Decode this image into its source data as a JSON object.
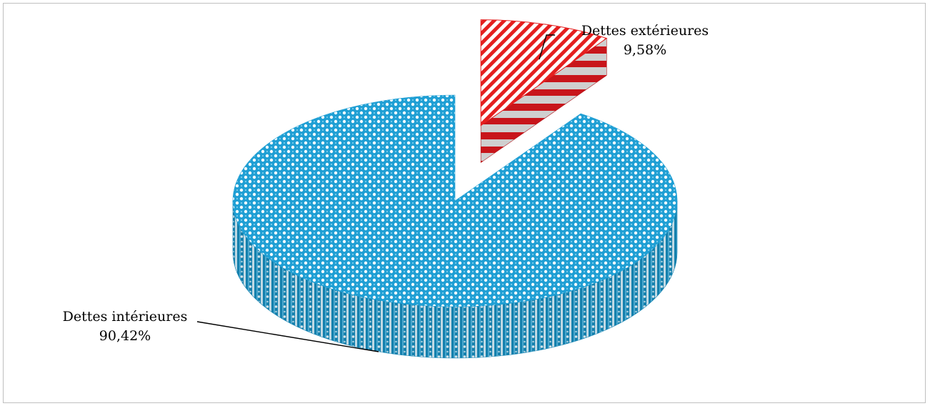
{
  "chart_data": {
    "type": "pie",
    "title": "",
    "style": "3d-exploded",
    "categories": [
      "Dettes intérieures",
      "Dettes extérieures"
    ],
    "values": [
      90.42,
      9.58
    ],
    "value_labels": [
      "90,42%",
      "9,58%"
    ],
    "unit": "%",
    "colors": [
      "#1f9fd4",
      "#e41f1f"
    ],
    "exploded_slice": "Dettes extérieures"
  },
  "labels": {
    "interior_name": "Dettes intérieures",
    "interior_value": "90,42%",
    "exterior_name": "Dettes extérieures",
    "exterior_value": "9,58%"
  }
}
